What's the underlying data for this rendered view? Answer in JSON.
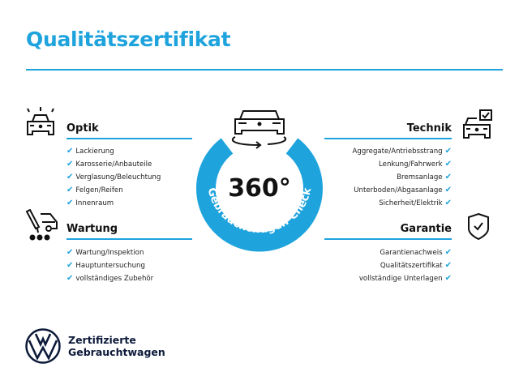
{
  "title": "Qualitätszertifikat",
  "accent_color": "#1ea3dd",
  "center": {
    "big": "360°",
    "arc_text": "Gebrauchtwagen-Check",
    "icon": "car-rotate-icon"
  },
  "sections": {
    "optik": {
      "heading": "Optik",
      "icon": "car-lights-icon",
      "items": [
        "Lackierung",
        "Karosserie/Anbauteile",
        "Verglasung/Beleuchtung",
        "Felgen/Reifen",
        "Innenraum"
      ]
    },
    "wartung": {
      "heading": "Wartung",
      "icon": "maintenance-icon",
      "items": [
        "Wartung/Inspektion",
        "Hauptuntersuchung",
        "vollständiges Zubehör"
      ]
    },
    "technik": {
      "heading": "Technik",
      "icon": "car-checkbox-icon",
      "items": [
        "Aggregate/Antriebsstrang",
        "Lenkung/Fahrwerk",
        "Bremsanlage",
        "Unterboden/Abgasanlage",
        "Sicherheit/Elektrik"
      ]
    },
    "garantie": {
      "heading": "Garantie",
      "icon": "shield-check-icon",
      "items": [
        "Garantienachweis",
        "Qualitätszertifikat",
        "vollständige Unterlagen"
      ]
    }
  },
  "check_glyph": "✔",
  "brand": {
    "line1": "Zertifizierte",
    "line2": "Gebrauchtwagen",
    "logo": "vw-logo"
  }
}
